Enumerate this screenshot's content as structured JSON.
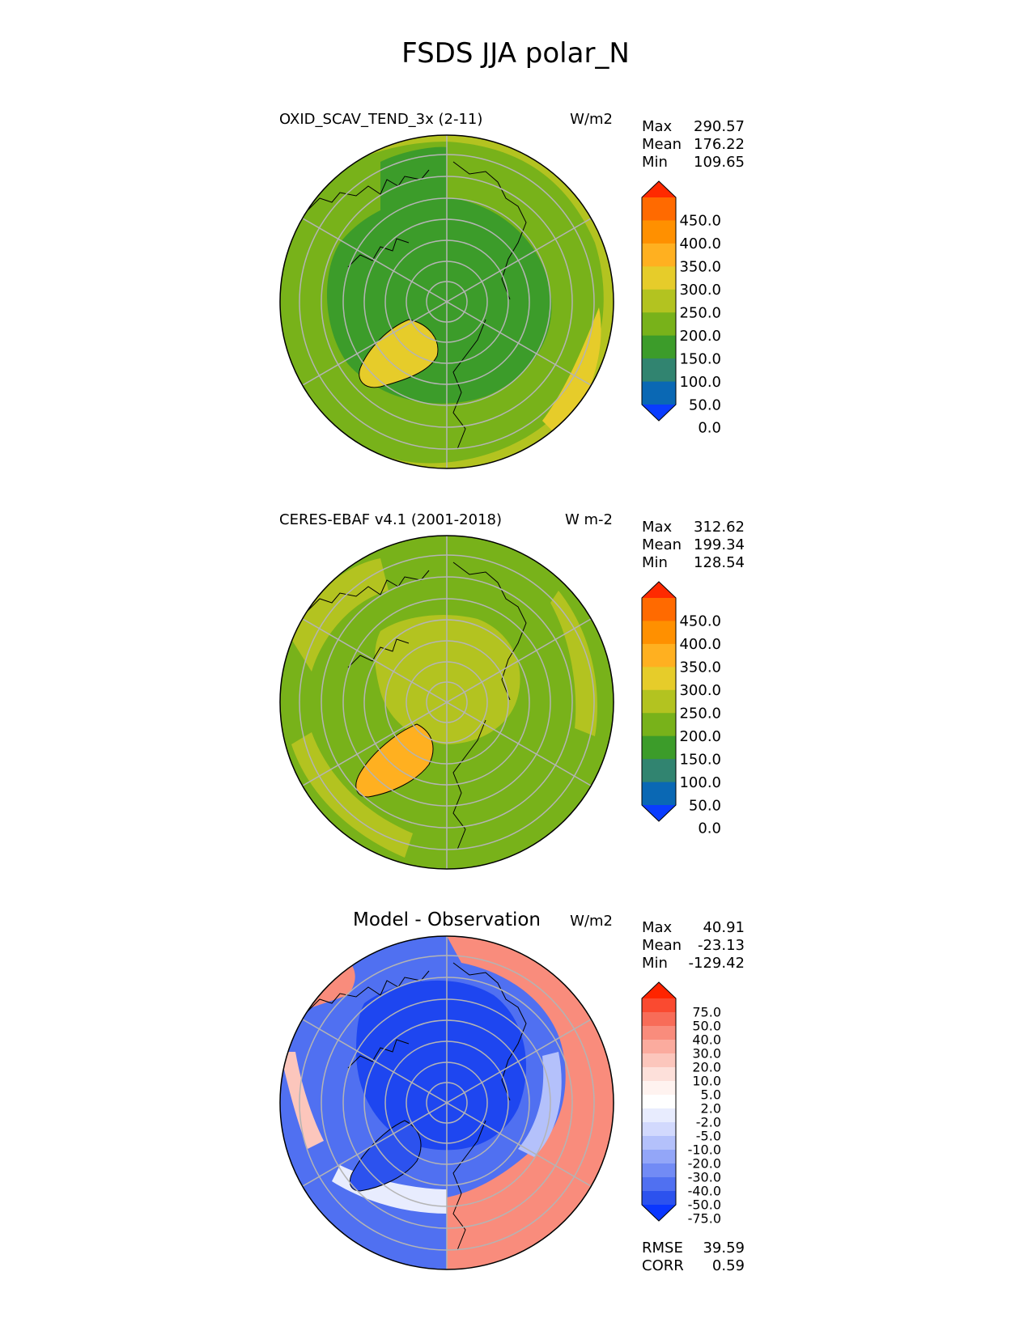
{
  "title": "FSDS JJA polar_N",
  "chart_data": [
    {
      "type": "heatmap",
      "projection": "north-polar-stereographic",
      "title": "OXID_SCAV_TEND_3x (2-11)",
      "units": "W/m2",
      "stats": [
        {
          "label": "Max",
          "value": "290.57"
        },
        {
          "label": "Mean",
          "value": "176.22"
        },
        {
          "label": "Min",
          "value": "109.65"
        }
      ],
      "colorbar": {
        "labels": [
          "450.0",
          "400.0",
          "350.0",
          "300.0",
          "250.0",
          "200.0",
          "150.0",
          "100.0",
          "50.0",
          "0.0"
        ],
        "colors": [
          "#ff2a00",
          "#ff6a00",
          "#ff9000",
          "#ffb020",
          "#e6cc2a",
          "#b3c320",
          "#78b21a",
          "#3c9c2a",
          "#318470",
          "#0a68b4",
          "#0a3cff"
        ]
      },
      "field_colors": {
        "pole": "#3c9c2a",
        "ring": "#78b21a",
        "outer": "#b3c320",
        "greenland": "#e6cc2a"
      }
    },
    {
      "type": "heatmap",
      "projection": "north-polar-stereographic",
      "title": "CERES-EBAF v4.1 (2001-2018)",
      "units": "W m-2",
      "stats": [
        {
          "label": "Max",
          "value": "312.62"
        },
        {
          "label": "Mean",
          "value": "199.34"
        },
        {
          "label": "Min",
          "value": "128.54"
        }
      ],
      "colorbar": {
        "labels": [
          "450.0",
          "400.0",
          "350.0",
          "300.0",
          "250.0",
          "200.0",
          "150.0",
          "100.0",
          "50.0",
          "0.0"
        ],
        "colors": [
          "#ff2a00",
          "#ff6a00",
          "#ff9000",
          "#ffb020",
          "#e6cc2a",
          "#b3c320",
          "#78b21a",
          "#3c9c2a",
          "#318470",
          "#0a68b4",
          "#0a3cff"
        ]
      },
      "field_colors": {
        "pole": "#b3c320",
        "ring": "#78b21a",
        "outer": "#78b21a",
        "greenland": "#ffb020"
      }
    },
    {
      "type": "heatmap",
      "projection": "north-polar-stereographic",
      "title": "Model - Observation",
      "units": "W/m2",
      "stats": [
        {
          "label": "Max",
          "value": "40.91"
        },
        {
          "label": "Mean",
          "value": "-23.13"
        },
        {
          "label": "Min",
          "value": "-129.42"
        }
      ],
      "colorbar": {
        "labels": [
          "75.0",
          "50.0",
          "40.0",
          "30.0",
          "20.0",
          "10.0",
          "5.0",
          "2.0",
          "-2.0",
          "-5.0",
          "-10.0",
          "-20.0",
          "-30.0",
          "-40.0",
          "-50.0",
          "-75.0"
        ],
        "colors": [
          "#ff2400",
          "#fa4a30",
          "#f86c58",
          "#f98c7c",
          "#fbab9e",
          "#fcc6bc",
          "#fde0da",
          "#fff3f0",
          "#ffffff",
          "#e8ecfe",
          "#d2d9fd",
          "#b4c1fb",
          "#93a6f8",
          "#728bf5",
          "#5070f1",
          "#2c52ee",
          "#0a36ff"
        ]
      },
      "field_colors": {
        "pole": "#1e46f0",
        "ring": "#5070f1",
        "outer": "#f98c7c",
        "greenland": "#2c52ee"
      },
      "metrics": [
        {
          "label": "RMSE",
          "value": "39.59"
        },
        {
          "label": "CORR",
          "value": "0.59"
        }
      ]
    }
  ]
}
